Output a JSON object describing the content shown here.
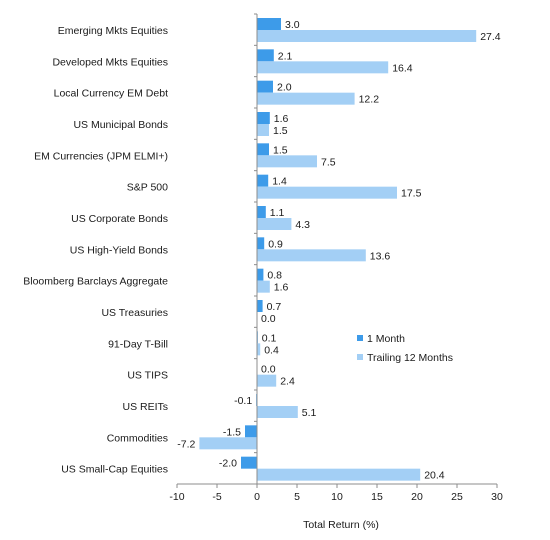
{
  "chart_data": {
    "type": "bar",
    "orientation": "horizontal",
    "categories": [
      "Emerging Mkts Equities",
      "Developed Mkts Equities",
      "Local Currency EM Debt",
      "US Municipal Bonds",
      "EM Currencies (JPM ELMI+)",
      "S&P 500",
      "US Corporate Bonds",
      "US High-Yield Bonds",
      "Bloomberg Barclays Aggregate",
      "US Treasuries",
      "91-Day T-Bill",
      "US TIPS",
      "US REITs",
      "Commodities",
      "US Small-Cap Equities"
    ],
    "series": [
      {
        "name": "1 Month",
        "color": "#3d9be9",
        "values": [
          3.0,
          2.1,
          2.0,
          1.6,
          1.5,
          1.4,
          1.1,
          0.9,
          0.8,
          0.7,
          0.1,
          0.0,
          -0.1,
          -1.5,
          -2.0
        ],
        "labels": [
          "3.0",
          "2.1",
          "2.0",
          "1.6",
          "1.5",
          "1.4",
          "1.1",
          "0.9",
          "0.8",
          "0.7",
          "0.1",
          "0.0",
          "-0.1",
          "-1.5",
          "-2.0"
        ]
      },
      {
        "name": "Trailing 12 Months",
        "color": "#a3cff5",
        "values": [
          27.4,
          16.4,
          12.2,
          1.5,
          7.5,
          17.5,
          4.3,
          13.6,
          1.6,
          0.0,
          0.4,
          2.4,
          5.1,
          -7.2,
          20.4
        ],
        "labels": [
          "27.4",
          "16.4",
          "12.2",
          "1.5",
          "7.5",
          "17.5",
          "4.3",
          "13.6",
          "1.6",
          "0.0",
          "0.4",
          "2.4",
          "5.1",
          "-7.2",
          "20.4"
        ]
      }
    ],
    "xlabel": "Total Return (%)",
    "xlim": [
      -10,
      30
    ],
    "xticks": [
      -10,
      -5,
      0,
      5,
      10,
      15,
      20,
      25,
      30
    ],
    "xtick_labels": [
      "-10",
      "-5",
      "0",
      "5",
      "10",
      "15",
      "20",
      "25",
      "30"
    ],
    "grid": false,
    "legend_position": "center-right"
  }
}
